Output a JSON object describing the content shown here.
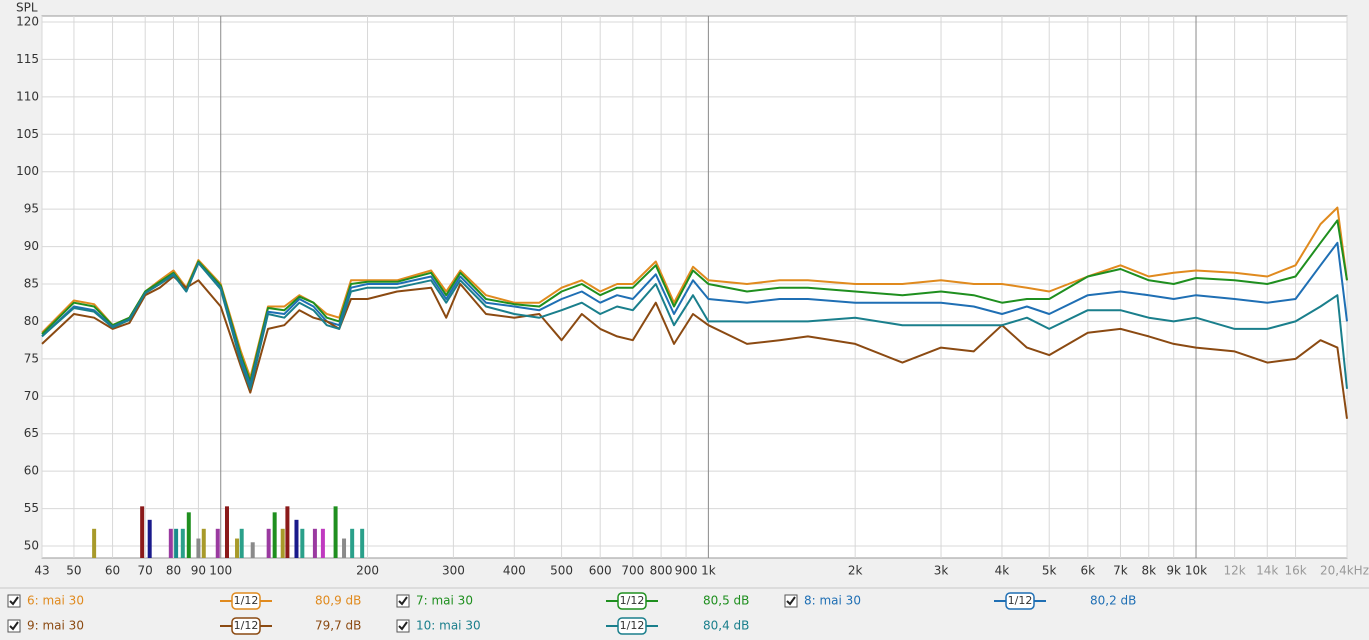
{
  "chart_data": {
    "type": "line",
    "y_label": "SPL",
    "xscale": "log",
    "grid": true,
    "xlim": [
      43,
      20400
    ],
    "ylim": [
      48.4,
      120.8
    ],
    "yticks": [
      50,
      55,
      60,
      65,
      70,
      75,
      80,
      85,
      90,
      95,
      100,
      105,
      110,
      115,
      120
    ],
    "xticks": [
      43,
      50,
      60,
      70,
      80,
      90,
      100,
      200,
      300,
      400,
      500,
      600,
      700,
      800,
      900,
      {
        "value": 1000,
        "label": "1k"
      },
      {
        "value": 2000,
        "label": "2k"
      },
      {
        "value": 3000,
        "label": "3k"
      },
      {
        "value": 4000,
        "label": "4k"
      },
      {
        "value": 5000,
        "label": "5k"
      },
      {
        "value": 6000,
        "label": "6k"
      },
      {
        "value": 7000,
        "label": "7k"
      },
      {
        "value": 8000,
        "label": "8k"
      },
      {
        "value": 9000,
        "label": "9k"
      },
      {
        "value": 10000,
        "label": "10k"
      },
      {
        "value": 12000,
        "label": "12k"
      },
      {
        "value": 14000,
        "label": "14k"
      },
      {
        "value": 16000,
        "label": "16k"
      },
      {
        "value": 20400,
        "label": "20,4kHz"
      }
    ],
    "x": [
      43,
      50,
      55,
      60,
      65,
      70,
      75,
      80,
      85,
      90,
      100,
      110,
      115,
      125,
      135,
      145,
      155,
      165,
      175,
      185,
      200,
      230,
      270,
      290,
      310,
      350,
      400,
      450,
      500,
      550,
      600,
      650,
      700,
      780,
      850,
      930,
      1000,
      1200,
      1400,
      1600,
      2000,
      2500,
      3000,
      3500,
      4000,
      4500,
      5000,
      6000,
      7000,
      8000,
      9000,
      10000,
      12000,
      14000,
      16000,
      18000,
      19500,
      20400
    ],
    "series": [
      {
        "name": "6: mai 30",
        "color": "#e08a1e",
        "smoothing": "1/12",
        "level": "80,9 dB",
        "values": [
          78.5,
          82.8,
          82.3,
          79.5,
          80.5,
          84,
          85.5,
          86.8,
          84.5,
          88.2,
          85,
          76,
          72.5,
          82,
          82,
          83.5,
          82.5,
          81,
          80.5,
          85.5,
          85.5,
          85.5,
          86.8,
          84,
          86.8,
          83.5,
          82.5,
          82.5,
          84.5,
          85.5,
          84,
          85,
          85,
          88,
          82.5,
          87.3,
          85.5,
          85,
          85.5,
          85.5,
          85,
          85,
          85.5,
          85,
          85,
          84.5,
          84,
          86,
          87.5,
          86,
          86.5,
          86.8,
          86.5,
          86,
          87.5,
          93,
          95.2,
          85.5
        ]
      },
      {
        "name": "7: mai 30",
        "color": "#1f8f1f",
        "smoothing": "1/12",
        "level": "80,5 dB",
        "values": [
          78.3,
          82.5,
          82,
          79.5,
          80.5,
          84,
          85.3,
          86.5,
          84.3,
          88,
          84.8,
          75.5,
          72,
          81.8,
          81.5,
          83.3,
          82.5,
          80.5,
          80,
          85,
          85.3,
          85.3,
          86.5,
          83.5,
          86.5,
          83,
          82.3,
          82,
          84,
          85,
          83.5,
          84.5,
          84.5,
          87.5,
          82,
          86.8,
          85,
          84,
          84.5,
          84.5,
          84,
          83.5,
          84,
          83.5,
          82.5,
          83,
          83,
          86,
          87,
          85.5,
          85,
          85.8,
          85.5,
          85,
          86,
          90.5,
          93.5,
          85.5
        ]
      },
      {
        "name": "8: mai 30",
        "color": "#1f6fb4",
        "smoothing": "1/12",
        "level": "80,2 dB",
        "values": [
          78,
          82,
          81.5,
          79.3,
          80.3,
          83.8,
          85,
          86.3,
          84,
          87.8,
          84.5,
          75,
          71.5,
          81.3,
          81,
          83,
          82,
          80,
          79.5,
          84.5,
          85,
          85,
          86,
          83,
          86,
          82.5,
          82,
          81.5,
          83,
          84,
          82.5,
          83.5,
          83,
          86.3,
          81,
          85.5,
          83,
          82.5,
          83,
          83,
          82.5,
          82.5,
          82.5,
          82,
          81,
          82,
          81,
          83.5,
          84,
          83.5,
          83,
          83.5,
          83,
          82.5,
          83,
          87.5,
          90.5,
          80
        ]
      },
      {
        "name": "9: mai 30",
        "color": "#8b4a12",
        "smoothing": "1/12",
        "level": "79,7 dB",
        "values": [
          77,
          81,
          80.5,
          79,
          79.8,
          83.5,
          84.5,
          86,
          84.5,
          85.5,
          82,
          74,
          70.5,
          79,
          79.5,
          81.5,
          80.5,
          80,
          79,
          83,
          83,
          84,
          84.5,
          80.5,
          85,
          81,
          80.5,
          81,
          77.5,
          81,
          79,
          78,
          77.5,
          82.5,
          77,
          81,
          79.5,
          77,
          77.5,
          78,
          77,
          74.5,
          76.5,
          76,
          79.5,
          76.5,
          75.5,
          78.5,
          79,
          78,
          77,
          76.5,
          76,
          74.5,
          75,
          77.5,
          76.5,
          67
        ]
      },
      {
        "name": "10: mai 30",
        "color": "#1a7f8c",
        "smoothing": "1/12",
        "level": "80,4 dB",
        "values": [
          78,
          81.8,
          81.3,
          79.2,
          80.2,
          83.8,
          85,
          86.2,
          84,
          87.8,
          84.3,
          74.5,
          71,
          81,
          80.5,
          82.5,
          81.5,
          79.5,
          79,
          84,
          84.5,
          84.5,
          85.5,
          82.5,
          85.5,
          82,
          81,
          80.5,
          81.5,
          82.5,
          81,
          82,
          81.5,
          85,
          79.5,
          83.5,
          80,
          80,
          80,
          80,
          80.5,
          79.5,
          79.5,
          79.5,
          79.5,
          80.5,
          79,
          81.5,
          81.5,
          80.5,
          80,
          80.5,
          79,
          79,
          80,
          82,
          83.5,
          71
        ]
      }
    ],
    "markers": {
      "x": [
        55,
        69,
        71.5,
        79,
        81,
        83.6,
        86,
        90,
        92.3,
        98.6,
        103,
        108,
        110.4,
        116.3,
        125.4,
        129,
        134,
        137,
        143,
        147,
        156,
        162,
        172,
        179,
        186,
        195
      ],
      "values": [
        52.3,
        55.3,
        53.5,
        52.3,
        52.3,
        52.3,
        54.5,
        51,
        52.3,
        52.3,
        55.3,
        51,
        52.3,
        50.5,
        52.3,
        54.5,
        52.3,
        55.3,
        53.5,
        52.3,
        52.3,
        52.3,
        55.3,
        51,
        52.3,
        52.3
      ],
      "colors": [
        "#a89a2a",
        "#8b1a1a",
        "#1a1a8b",
        "#9a3aa0",
        "#1a8b8b",
        "#2aa08a",
        "#1f8f1f",
        "#8a8a8a",
        "#a89a2a",
        "#9a3aa0",
        "#8b1a1a",
        "#a89a2a",
        "#2aa08a",
        "#8a8a8a",
        "#9a3aa0",
        "#1f8f1f",
        "#a89a2a",
        "#8b1a1a",
        "#1a1a8b",
        "#2aa08a",
        "#9a3aa0",
        "#c03ac0",
        "#1f8f1f",
        "#8a8a8a",
        "#2aa08a",
        "#2aa08a"
      ]
    }
  }
}
